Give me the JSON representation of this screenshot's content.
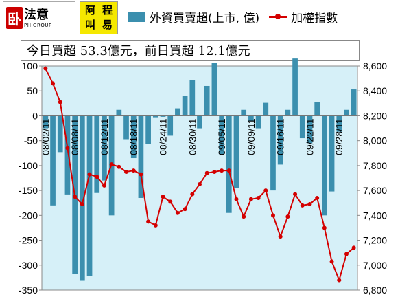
{
  "header": {
    "logo1_char": "卧",
    "logo1_text": "法意",
    "logo1_sub": "PHIGROUP",
    "logo2_chars": [
      "阿",
      "程",
      "叫",
      "易"
    ],
    "logo2_small": [
      "式",
      "交"
    ],
    "legend_bar_label": "外資買賣超(上市, 億)",
    "legend_line_label": "加權指數",
    "summary": "今日買超 53.3億元，前日買超 12.1億元"
  },
  "chart_data": {
    "type": "bar+line",
    "title": "",
    "colors": {
      "bar": "#3b8fae",
      "line": "#d40000",
      "plot_bg": "#d6f0f8"
    },
    "left_axis": {
      "label": "外資買賣超(上市, 億)",
      "ylim": [
        -350,
        100
      ],
      "ticks": [
        100,
        50,
        0,
        -50,
        -100,
        -150,
        -200,
        -250,
        -300,
        -350
      ]
    },
    "right_axis": {
      "label": "加權指數",
      "ylim": [
        6800,
        8600
      ],
      "ticks": [
        "8,600",
        "8,400",
        "8,200",
        "8,000",
        "7,800",
        "7,600",
        "7,400",
        "7,200",
        "7,000",
        "6,800"
      ],
      "tick_values": [
        8600,
        8400,
        8200,
        8000,
        7800,
        7600,
        7400,
        7200,
        7000,
        6800
      ]
    },
    "x_labels": [
      "08/02/11",
      "08/08/11",
      "08/12/11",
      "08/18/11",
      "08/24/11",
      "08/30/11",
      "09/05/11",
      "09/09/11",
      "09/16/11",
      "09/22/11",
      "09/28/11"
    ],
    "x_label_index": [
      0,
      4,
      8,
      12,
      16,
      20,
      24,
      28,
      32,
      36,
      40
    ],
    "series": [
      {
        "name": "外資買賣超(上市, 億)",
        "type": "bar",
        "values": [
          -25,
          -180,
          -73,
          -158,
          -318,
          -330,
          -322,
          -155,
          -130,
          -200,
          12,
          -47,
          -85,
          -165,
          -57,
          -3,
          -2,
          -40,
          15,
          40,
          72,
          -25,
          60,
          106,
          -77,
          -195,
          -145,
          12,
          -10,
          -25,
          26,
          -150,
          -98,
          12,
          115,
          -45,
          -55,
          27,
          -200,
          -152,
          -32,
          12,
          53
        ]
      },
      {
        "name": "加權指數",
        "type": "line",
        "values": [
          8580,
          8460,
          8310,
          7940,
          7550,
          7490,
          7730,
          7710,
          7640,
          7810,
          7790,
          7750,
          7760,
          7730,
          7350,
          7320,
          7550,
          7510,
          7420,
          7450,
          7570,
          7650,
          7740,
          7750,
          7760,
          7760,
          7530,
          7390,
          7530,
          7540,
          7600,
          7400,
          7230,
          7390,
          7570,
          7480,
          7490,
          7540,
          7300,
          7030,
          6880,
          7090,
          7140
        ]
      }
    ]
  }
}
